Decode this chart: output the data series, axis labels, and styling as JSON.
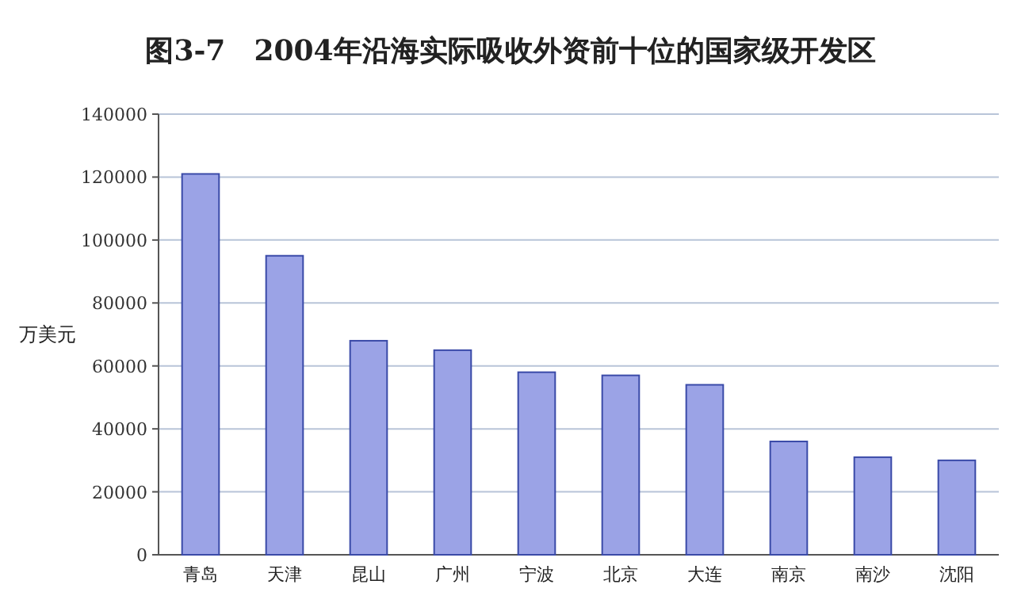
{
  "chart_data": {
    "type": "bar",
    "title": "图3-7　2004年沿海实际吸收外资前十位的国家级开发区",
    "ylabel": "万美元",
    "categories": [
      "青岛",
      "天津",
      "昆山",
      "广州",
      "宁波",
      "北京",
      "大连",
      "南京",
      "南沙",
      "沈阳"
    ],
    "series": [
      {
        "color": "#9ba3e6",
        "values": [
          121000,
          95000,
          68000,
          65000,
          58000,
          57000,
          54000,
          36000,
          31000,
          30000
        ]
      }
    ],
    "ylim": [
      0,
      140000
    ],
    "yticks": [
      0,
      20000,
      40000,
      60000,
      80000,
      100000,
      120000,
      140000
    ],
    "grid": "y"
  }
}
